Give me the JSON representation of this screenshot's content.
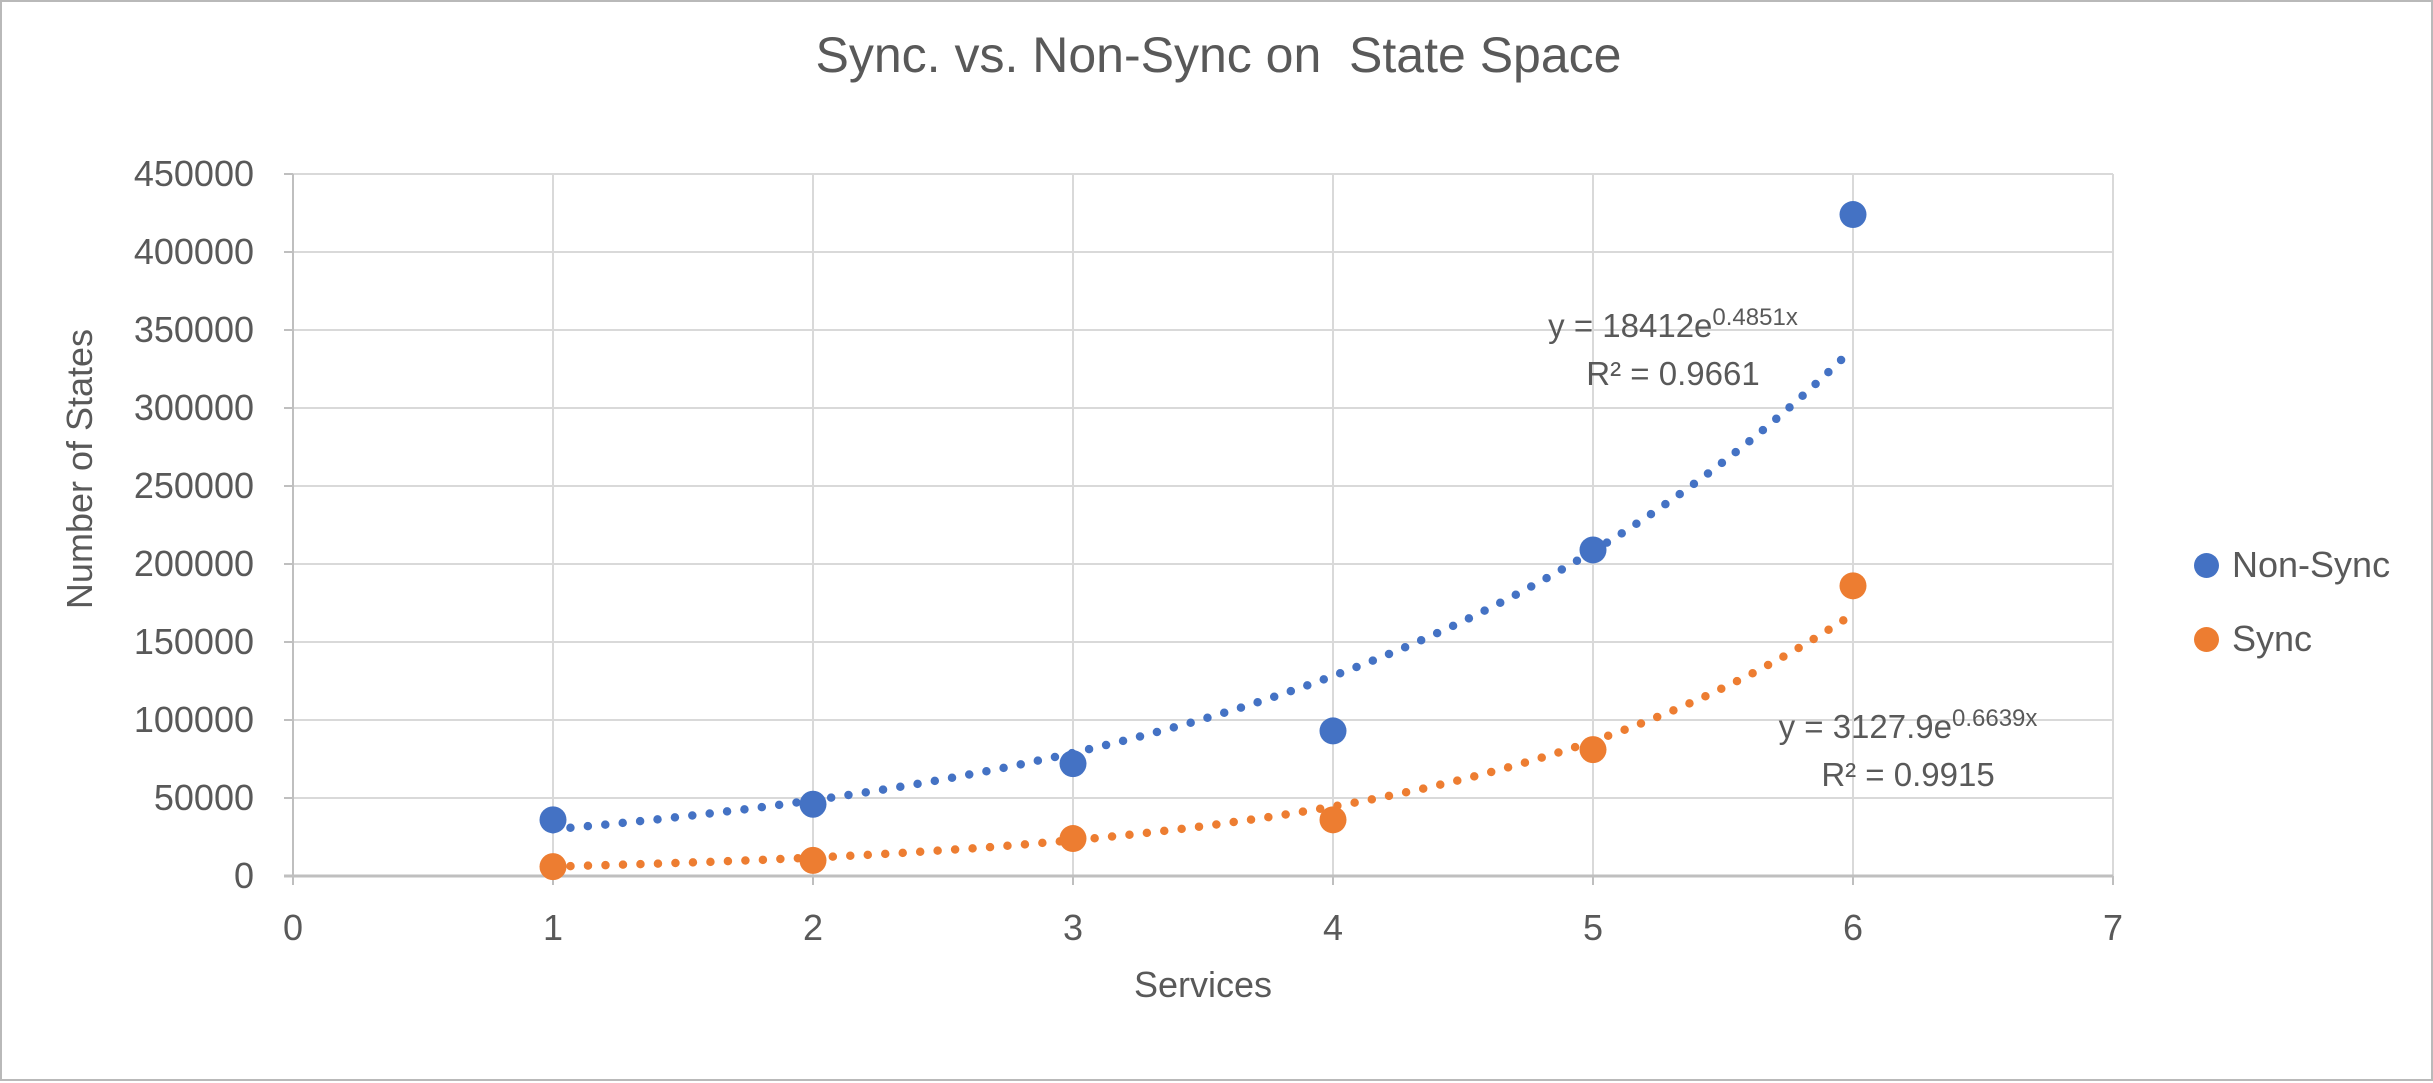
{
  "chart_data": {
    "type": "scatter",
    "title": "Sync. vs. Non-Sync on  State Space",
    "xlabel": "Services",
    "ylabel": "Number of States",
    "xlim": [
      0,
      7
    ],
    "ylim": [
      0,
      450000
    ],
    "x_ticks": [
      0,
      1,
      2,
      3,
      4,
      5,
      6,
      7
    ],
    "y_ticks": [
      0,
      50000,
      100000,
      150000,
      200000,
      250000,
      300000,
      350000,
      400000,
      450000
    ],
    "grid": true,
    "legend_position": "right",
    "x": [
      1,
      2,
      3,
      4,
      5,
      6
    ],
    "series": [
      {
        "name": "Non-Sync",
        "color": "#4472C4",
        "values": [
          36000,
          46000,
          72000,
          93000,
          209000,
          424000
        ],
        "trendline": {
          "type": "exponential",
          "a": 18412,
          "b": 0.4851,
          "equation_base": "y = 18412e",
          "equation_exponent": "0.4851x",
          "r2_label": "R² = 0.9661"
        }
      },
      {
        "name": "Sync",
        "color": "#ED7D31",
        "values": [
          6000,
          10000,
          24000,
          36000,
          81000,
          186000
        ],
        "trendline": {
          "type": "exponential",
          "a": 3127.9,
          "b": 0.6639,
          "equation_base": "y = 3127.9e",
          "equation_exponent": "0.6639x",
          "r2_label": "R² = 0.9915"
        }
      }
    ],
    "colors": {
      "grid": "#D9D9D9",
      "axis": "#BFBFBF",
      "text": "#595959"
    }
  }
}
